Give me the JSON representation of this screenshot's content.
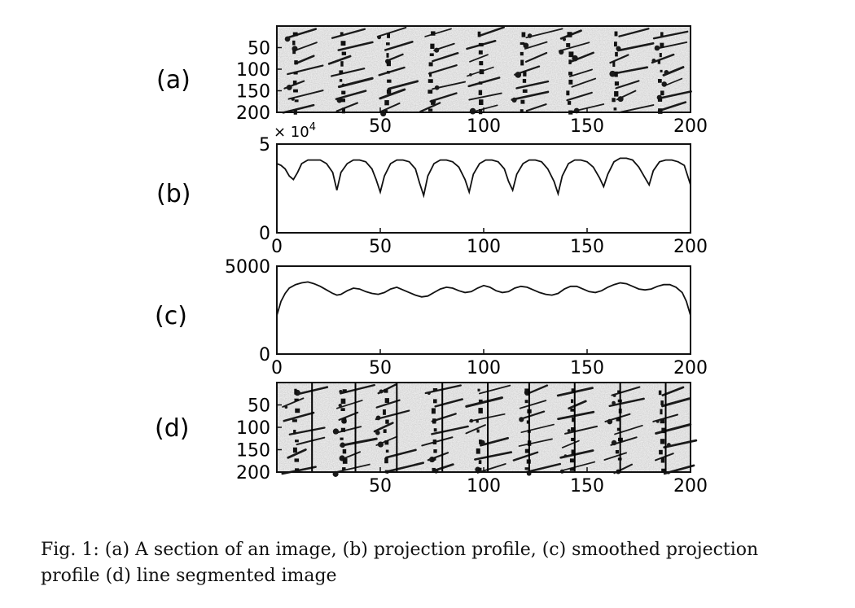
{
  "figure": {
    "panels": [
      {
        "id": "a",
        "label": "(a)",
        "kind": "image",
        "yticks": [
          "50",
          "100",
          "150",
          "200"
        ],
        "xticks": [
          "50",
          "100",
          "150",
          "200"
        ]
      },
      {
        "id": "b",
        "label": "(b)",
        "kind": "line",
        "exponent_note": "× 10",
        "exponent_power": "4",
        "yticks": [
          "0",
          "5"
        ],
        "xticks": [
          "0",
          "50",
          "100",
          "150",
          "200"
        ]
      },
      {
        "id": "c",
        "label": "(c)",
        "kind": "line",
        "yticks": [
          "0",
          "5000"
        ],
        "xticks": [
          "0",
          "50",
          "100",
          "150",
          "200"
        ]
      },
      {
        "id": "d",
        "label": "(d)",
        "kind": "image",
        "yticks": [
          "50",
          "100",
          "150",
          "200"
        ],
        "xticks": [
          "50",
          "100",
          "150",
          "200"
        ]
      }
    ]
  },
  "chart_data": [
    {
      "type": "line",
      "panel": "(b)",
      "xlim": [
        0,
        200
      ],
      "ylim": [
        0,
        5
      ],
      "y_scale_note": "× 10^4",
      "x": [
        0,
        2,
        4,
        6,
        8,
        10,
        12,
        15,
        18,
        21,
        24,
        27,
        29,
        31,
        34,
        37,
        40,
        43,
        46,
        48,
        50,
        52,
        55,
        58,
        61,
        64,
        67,
        69,
        71,
        73,
        76,
        79,
        82,
        85,
        88,
        91,
        93,
        95,
        98,
        101,
        104,
        107,
        110,
        112,
        114,
        116,
        119,
        122,
        125,
        128,
        131,
        134,
        136,
        138,
        141,
        144,
        147,
        150,
        153,
        156,
        158,
        160,
        163,
        166,
        169,
        172,
        175,
        178,
        180,
        182,
        185,
        188,
        191,
        194,
        197,
        200
      ],
      "y": [
        3.9,
        3.8,
        3.6,
        3.2,
        3.0,
        3.4,
        3.9,
        4.1,
        4.1,
        4.1,
        3.9,
        3.4,
        2.4,
        3.4,
        3.9,
        4.1,
        4.1,
        4.0,
        3.6,
        3.0,
        2.3,
        3.2,
        3.9,
        4.1,
        4.1,
        4.0,
        3.6,
        2.8,
        2.1,
        3.2,
        3.9,
        4.1,
        4.1,
        4.0,
        3.7,
        3.0,
        2.3,
        3.3,
        3.9,
        4.1,
        4.1,
        4.0,
        3.6,
        2.9,
        2.4,
        3.3,
        3.9,
        4.1,
        4.1,
        4.0,
        3.6,
        2.9,
        2.2,
        3.2,
        3.9,
        4.1,
        4.1,
        4.0,
        3.7,
        3.1,
        2.6,
        3.3,
        4.0,
        4.2,
        4.2,
        4.1,
        3.7,
        3.1,
        2.7,
        3.5,
        4.0,
        4.1,
        4.1,
        4.0,
        3.8,
        2.7
      ]
    },
    {
      "type": "line",
      "panel": "(c)",
      "xlim": [
        0,
        200
      ],
      "ylim": [
        0,
        5000
      ],
      "x": [
        0,
        2,
        4,
        6,
        9,
        12,
        15,
        18,
        21,
        24,
        27,
        29,
        31,
        34,
        37,
        40,
        43,
        46,
        49,
        52,
        55,
        58,
        61,
        64,
        67,
        70,
        73,
        76,
        79,
        82,
        85,
        88,
        91,
        94,
        97,
        100,
        103,
        106,
        109,
        112,
        115,
        118,
        121,
        124,
        127,
        130,
        133,
        136,
        139,
        142,
        145,
        148,
        151,
        154,
        157,
        160,
        163,
        166,
        169,
        172,
        175,
        178,
        181,
        184,
        187,
        190,
        193,
        196,
        198,
        200
      ],
      "y": [
        2200,
        3000,
        3450,
        3750,
        3950,
        4050,
        4100,
        4000,
        3850,
        3650,
        3450,
        3350,
        3400,
        3600,
        3750,
        3700,
        3550,
        3450,
        3400,
        3500,
        3700,
        3800,
        3650,
        3500,
        3350,
        3250,
        3300,
        3500,
        3700,
        3800,
        3750,
        3600,
        3500,
        3550,
        3750,
        3900,
        3800,
        3600,
        3500,
        3550,
        3750,
        3850,
        3800,
        3650,
        3500,
        3400,
        3350,
        3450,
        3700,
        3850,
        3850,
        3700,
        3550,
        3500,
        3600,
        3800,
        3950,
        4050,
        4000,
        3850,
        3700,
        3650,
        3700,
        3850,
        3950,
        3950,
        3800,
        3500,
        3000,
        2200
      ]
    }
  ],
  "caption": {
    "line1": "Fig. 1: (a) A section of an image, (b) projection profile, (c) smoothed projection",
    "line2": "profile (d) line segmented image"
  }
}
